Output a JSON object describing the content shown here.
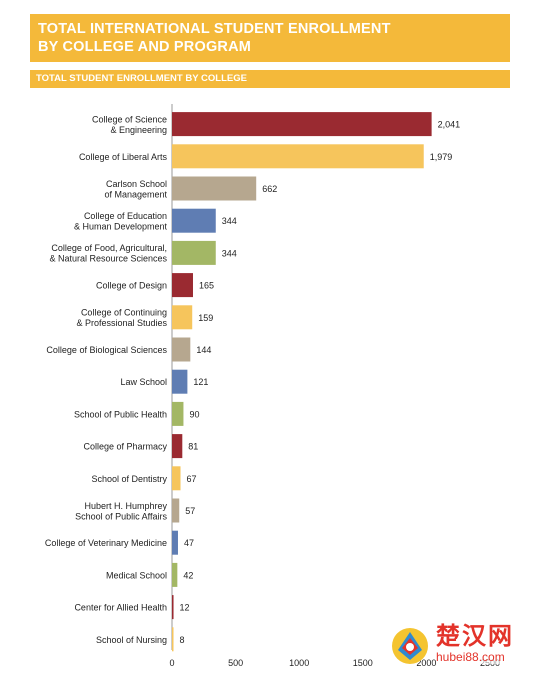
{
  "header": {
    "title": "TOTAL INTERNATIONAL STUDENT ENROLLMENT\nBY COLLEGE AND PROGRAM",
    "subtitle": "TOTAL STUDENT ENROLLMENT BY COLLEGE"
  },
  "colors": {
    "header": "#f4b93a",
    "crimson": "#9a2a31",
    "gold": "#f6c55c",
    "tan": "#b6a78f",
    "blue": "#5f7db3",
    "green": "#a3b765"
  },
  "chart_data": {
    "type": "bar",
    "orientation": "horizontal",
    "categories": [
      "College of Science\n& Engineering",
      "College of Liberal Arts",
      "Carlson School\nof Management",
      "College of Education\n& Human Development",
      "College of Food, Agricultural,\n& Natural Resource Sciences",
      "College of Design",
      "College of Continuing\n& Professional Studies",
      "College of Biological Sciences",
      "Law School",
      "School of Public Health",
      "College of Pharmacy",
      "School of Dentistry",
      "Hubert H. Humphrey\nSchool of Public Affairs",
      "College of Veterinary Medicine",
      "Medical School",
      "Center for Allied Health",
      "School of Nursing"
    ],
    "values": [
      2041,
      1979,
      662,
      344,
      344,
      165,
      159,
      144,
      121,
      90,
      81,
      67,
      57,
      47,
      42,
      12,
      8
    ],
    "value_labels": [
      "2,041",
      "1,979",
      "662",
      "344",
      "344",
      "165",
      "159",
      "144",
      "121",
      "90",
      "81",
      "67",
      "57",
      "47",
      "42",
      "12",
      "8"
    ],
    "bar_colors": [
      "#9a2a31",
      "#f6c55c",
      "#b6a78f",
      "#5f7db3",
      "#a3b765",
      "#9a2a31",
      "#f6c55c",
      "#b6a78f",
      "#5f7db3",
      "#a3b765",
      "#9a2a31",
      "#f6c55c",
      "#b6a78f",
      "#5f7db3",
      "#a3b765",
      "#9a2a31",
      "#f6c55c"
    ],
    "x_ticks": [
      0,
      500,
      1000,
      1500,
      2000,
      2500
    ],
    "x_tick_labels": [
      "0",
      "500",
      "1000",
      "1500",
      "2000",
      "2500"
    ],
    "xlim": [
      0,
      2500
    ],
    "grid": false
  },
  "watermark": {
    "text": "楚汉网",
    "url": "hubei88.com"
  }
}
